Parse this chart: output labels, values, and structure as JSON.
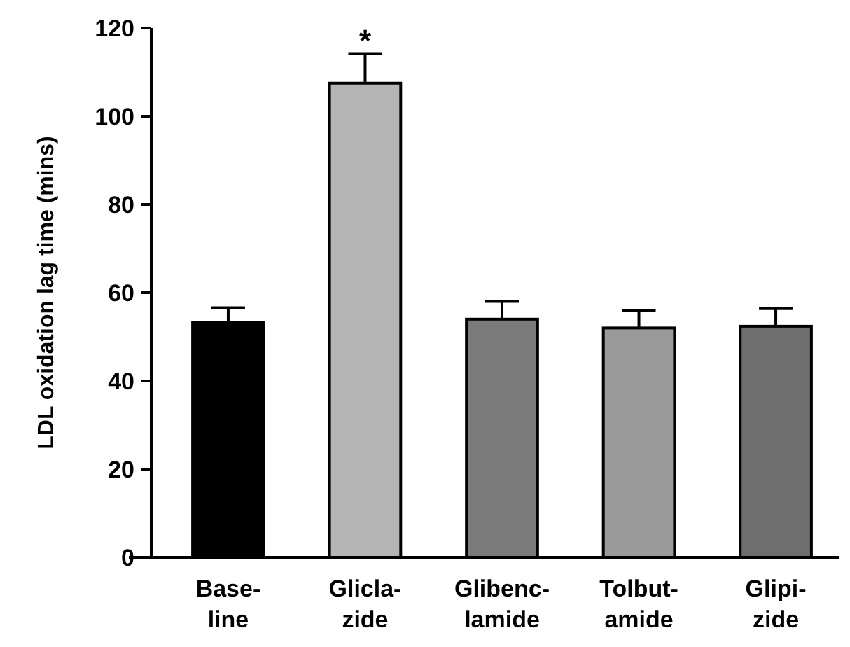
{
  "chart_data": {
    "type": "bar",
    "ylabel": "LDL oxidation lag time (mins)",
    "categories": [
      "Base-\nline",
      "Glicla-\nzide",
      "Glibenc-\nlamide",
      "Tolbut-\namide",
      "Glipi-\nzide"
    ],
    "values": [
      53.3,
      107.5,
      54,
      52,
      52.4
    ],
    "errors": [
      3.3,
      6.7,
      4,
      4,
      4
    ],
    "colors": [
      "#000000",
      "#b4b4b4",
      "#7a7a7a",
      "#9a9a9a",
      "#6e6e6e"
    ],
    "ylim": [
      0,
      120
    ],
    "yticks": [
      0,
      20,
      40,
      60,
      80,
      100,
      120
    ],
    "annotations": [
      {
        "text": "*",
        "x": "Glicla-\nzide",
        "y": 114.2
      }
    ]
  }
}
